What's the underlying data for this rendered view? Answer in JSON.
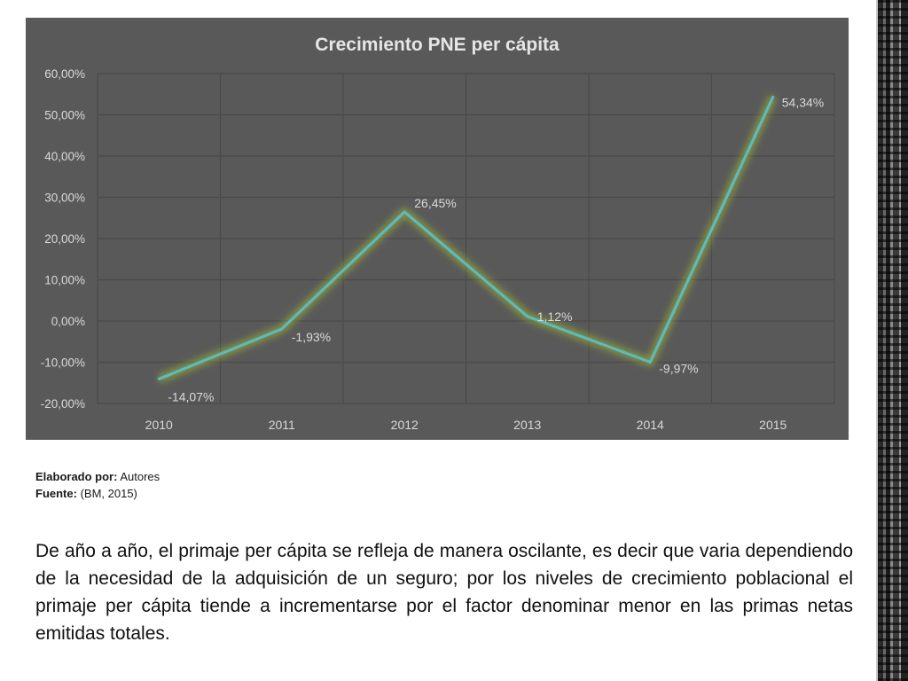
{
  "chart_data": {
    "type": "line",
    "title": "Crecimiento PNE per cápita",
    "categories": [
      "2010",
      "2011",
      "2012",
      "2013",
      "2014",
      "2015"
    ],
    "series": [
      {
        "values": [
          -14.07,
          -1.93,
          26.45,
          1.12,
          -9.97,
          54.34
        ],
        "labels": [
          "-14,07%",
          "-1,93%",
          "26,45%",
          "1,12%",
          "-9,97%",
          "54,34%"
        ]
      }
    ],
    "y_ticks": [
      {
        "value": 60,
        "label": "60,00%"
      },
      {
        "value": 50,
        "label": "50,00%"
      },
      {
        "value": 40,
        "label": "40,00%"
      },
      {
        "value": 30,
        "label": "30,00%"
      },
      {
        "value": 20,
        "label": "20,00%"
      },
      {
        "value": 10,
        "label": "10,00%"
      },
      {
        "value": 0,
        "label": "0,00%"
      },
      {
        "value": -10,
        "label": "-10,00%"
      },
      {
        "value": -20,
        "label": "-20,00%"
      }
    ],
    "ylim": [
      -20,
      60
    ],
    "grid": true,
    "colors": {
      "background": "#595959",
      "line": "#5bbcc0",
      "glow": "#a8c832",
      "text": "#d9d9d9",
      "grid": "#4a4a4a"
    }
  },
  "caption": {
    "made_by_label": "Elaborado por:",
    "made_by_value": "Autores",
    "source_label": "Fuente:",
    "source_value": "(BM, 2015)"
  },
  "body_text": "De año a año, el primaje per cápita se refleja de manera oscilante, es decir que varia dependiendo de la necesidad de la adquisición de un seguro; por los niveles de crecimiento poblacional el primaje per cápita tiende a incrementarse por el factor denominar menor en las primas netas emitidas totales."
}
